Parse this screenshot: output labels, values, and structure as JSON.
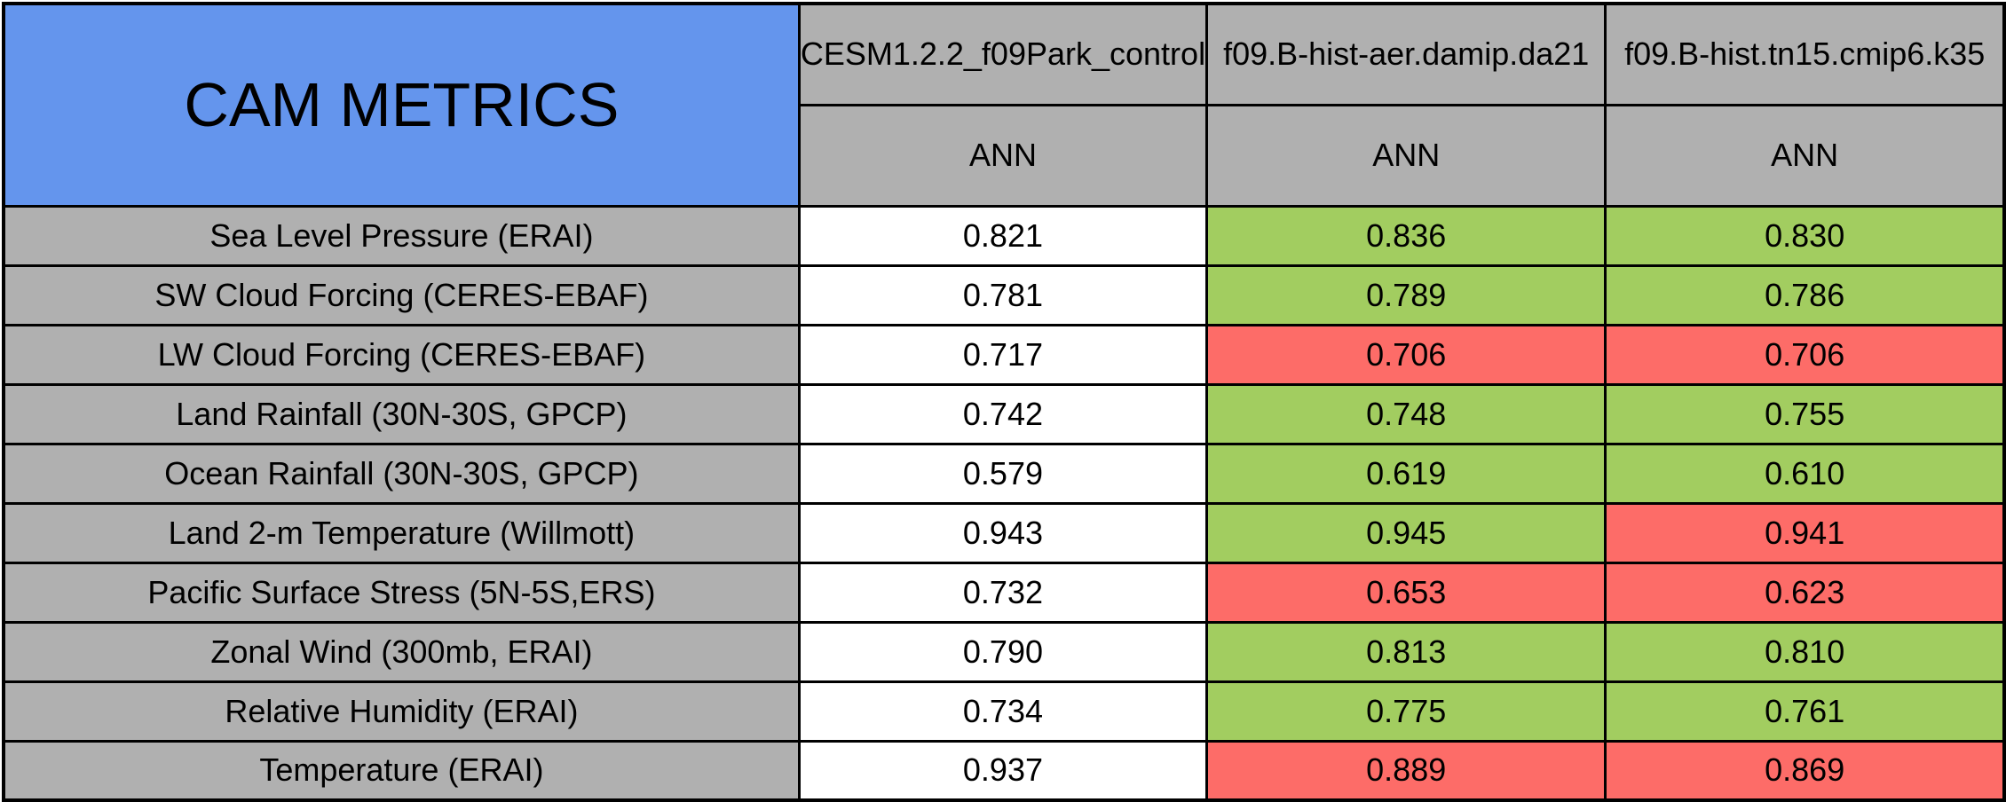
{
  "table": {
    "title": "CAM METRICS",
    "columns": [
      {
        "model": "CESM1.2.2_f09Park_control",
        "season": "ANN"
      },
      {
        "model": "f09.B-hist-aer.damip.da21",
        "season": "ANN"
      },
      {
        "model": "f09.B-hist.tn15.cmip6.k35",
        "season": "ANN"
      }
    ],
    "rows": [
      {
        "metric": "Sea Level Pressure (ERAI)",
        "display": [
          "0.821",
          "0.836",
          "0.830"
        ],
        "status": [
          "neutral",
          "better",
          "better"
        ]
      },
      {
        "metric": "SW Cloud Forcing (CERES-EBAF)",
        "display": [
          "0.781",
          "0.789",
          "0.786"
        ],
        "status": [
          "neutral",
          "better",
          "better"
        ]
      },
      {
        "metric": "LW Cloud Forcing (CERES-EBAF)",
        "display": [
          "0.717",
          "0.706",
          "0.706"
        ],
        "status": [
          "neutral",
          "worse",
          "worse"
        ]
      },
      {
        "metric": "Land Rainfall (30N-30S, GPCP)",
        "display": [
          "0.742",
          "0.748",
          "0.755"
        ],
        "status": [
          "neutral",
          "better",
          "better"
        ]
      },
      {
        "metric": "Ocean Rainfall (30N-30S, GPCP)",
        "display": [
          "0.579",
          "0.619",
          "0.610"
        ],
        "status": [
          "neutral",
          "better",
          "better"
        ]
      },
      {
        "metric": "Land 2-m Temperature (Willmott)",
        "display": [
          "0.943",
          "0.945",
          "0.941"
        ],
        "status": [
          "neutral",
          "better",
          "worse"
        ]
      },
      {
        "metric": "Pacific Surface Stress (5N-5S,ERS)",
        "display": [
          "0.732",
          "0.653",
          "0.623"
        ],
        "status": [
          "neutral",
          "worse",
          "worse"
        ]
      },
      {
        "metric": "Zonal Wind (300mb, ERAI)",
        "display": [
          "0.790",
          "0.813",
          "0.810"
        ],
        "status": [
          "neutral",
          "better",
          "better"
        ]
      },
      {
        "metric": "Relative Humidity (ERAI)",
        "display": [
          "0.734",
          "0.775",
          "0.761"
        ],
        "status": [
          "neutral",
          "better",
          "better"
        ]
      },
      {
        "metric": "Temperature (ERAI)",
        "display": [
          "0.937",
          "0.889",
          "0.869"
        ],
        "status": [
          "neutral",
          "worse",
          "worse"
        ]
      }
    ],
    "colors": {
      "title_blue": "#6495ED",
      "header_gray": "#B0B0B0",
      "neutral": "#FFFFFF",
      "better": "#A2CD60",
      "worse": "#FD6C68"
    }
  },
  "chart_data": {
    "type": "table",
    "title": "CAM METRICS",
    "columns": [
      "CESM1.2.2_f09Park_control",
      "f09.B-hist-aer.damip.da21",
      "f09.B-hist.tn15.cmip6.k35"
    ],
    "season_subheaders": [
      "ANN",
      "ANN",
      "ANN"
    ],
    "rows": [
      {
        "metric": "Sea Level Pressure (ERAI)",
        "values": [
          0.821,
          0.836,
          0.83
        ],
        "cell_colors": [
          "white",
          "green",
          "green"
        ]
      },
      {
        "metric": "SW Cloud Forcing (CERES-EBAF)",
        "values": [
          0.781,
          0.789,
          0.786
        ],
        "cell_colors": [
          "white",
          "green",
          "green"
        ]
      },
      {
        "metric": "LW Cloud Forcing (CERES-EBAF)",
        "values": [
          0.717,
          0.706,
          0.706
        ],
        "cell_colors": [
          "white",
          "red",
          "red"
        ]
      },
      {
        "metric": "Land Rainfall (30N-30S, GPCP)",
        "values": [
          0.742,
          0.748,
          0.755
        ],
        "cell_colors": [
          "white",
          "green",
          "green"
        ]
      },
      {
        "metric": "Ocean Rainfall (30N-30S, GPCP)",
        "values": [
          0.579,
          0.619,
          0.61
        ],
        "cell_colors": [
          "white",
          "green",
          "green"
        ]
      },
      {
        "metric": "Land 2-m Temperature (Willmott)",
        "values": [
          0.943,
          0.945,
          0.941
        ],
        "cell_colors": [
          "white",
          "green",
          "red"
        ]
      },
      {
        "metric": "Pacific Surface Stress (5N-5S,ERS)",
        "values": [
          0.732,
          0.653,
          0.623
        ],
        "cell_colors": [
          "white",
          "red",
          "red"
        ]
      },
      {
        "metric": "Zonal Wind (300mb, ERAI)",
        "values": [
          0.79,
          0.813,
          0.81
        ],
        "cell_colors": [
          "white",
          "green",
          "green"
        ]
      },
      {
        "metric": "Relative Humidity (ERAI)",
        "values": [
          0.734,
          0.775,
          0.761
        ],
        "cell_colors": [
          "white",
          "green",
          "green"
        ]
      },
      {
        "metric": "Temperature (ERAI)",
        "values": [
          0.937,
          0.889,
          0.869
        ],
        "cell_colors": [
          "white",
          "red",
          "red"
        ]
      }
    ]
  }
}
